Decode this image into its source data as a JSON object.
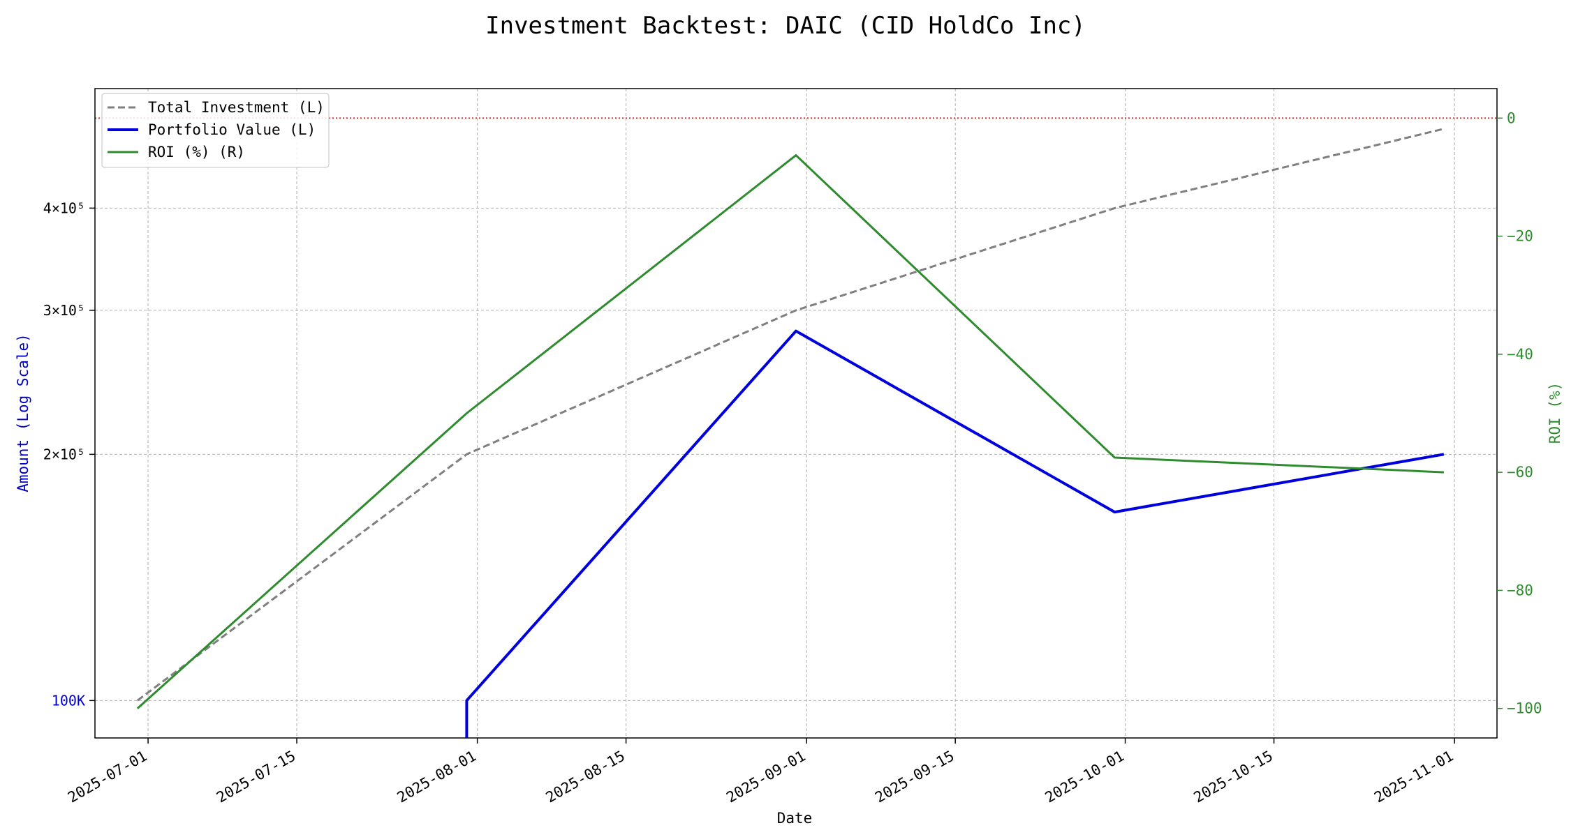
{
  "chart_data": {
    "type": "line",
    "title": "Investment Backtest: DAIC (CID HoldCo Inc)",
    "xlabel": "Date",
    "ylabel_left": "Amount (Log Scale)",
    "ylabel_right": "ROI (%)",
    "x_range": [
      "2025-06-26",
      "2025-11-05"
    ],
    "y_left_scale": "log",
    "y_left_range": [
      90000,
      560000
    ],
    "y_right_range": [
      -105,
      5
    ],
    "x_ticks": [
      "2025-07-01",
      "2025-07-15",
      "2025-08-01",
      "2025-08-15",
      "2025-09-01",
      "2025-09-15",
      "2025-10-01",
      "2025-10-15",
      "2025-11-01"
    ],
    "y_left_ticks": [
      {
        "value": 100000,
        "label": "100K"
      },
      {
        "value": 200000,
        "label": "2×10⁵"
      },
      {
        "value": 300000,
        "label": "3×10⁵"
      },
      {
        "value": 400000,
        "label": "4×10⁵"
      }
    ],
    "y_right_ticks": [
      0,
      -20,
      -40,
      -60,
      -80,
      -100
    ],
    "grid": true,
    "legend_position": "top-left",
    "reference_line": {
      "axis": "right",
      "value": 0,
      "color": "#d62728",
      "style": "dotted"
    },
    "series": [
      {
        "name": "Total Investment (L)",
        "axis": "left",
        "style": "dashed",
        "color": "#7f7f7f",
        "points": [
          {
            "x": "2025-06-30",
            "y": 100000
          },
          {
            "x": "2025-07-31",
            "y": 200000
          },
          {
            "x": "2025-08-31",
            "y": 300000
          },
          {
            "x": "2025-09-30",
            "y": 400000
          },
          {
            "x": "2025-10-31",
            "y": 500000
          }
        ]
      },
      {
        "name": "Portfolio Value (L)",
        "axis": "left",
        "style": "solid-thick",
        "color": "#0000dd",
        "points": [
          {
            "x": "2025-07-31",
            "y": 85000
          },
          {
            "x": "2025-07-31",
            "y": 100000
          },
          {
            "x": "2025-08-31",
            "y": 283000
          },
          {
            "x": "2025-09-30",
            "y": 170000
          },
          {
            "x": "2025-10-31",
            "y": 200000
          }
        ]
      },
      {
        "name": "ROI (%) (R)",
        "axis": "right",
        "style": "solid",
        "color": "#2e8b2e",
        "points": [
          {
            "x": "2025-06-30",
            "y": -100
          },
          {
            "x": "2025-07-31",
            "y": -50
          },
          {
            "x": "2025-08-31",
            "y": -6.3
          },
          {
            "x": "2025-09-30",
            "y": -57.5
          },
          {
            "x": "2025-10-31",
            "y": -60
          }
        ]
      }
    ]
  },
  "colors": {
    "left_axis_label": "#0000cc",
    "right_axis": "#2e8b2e",
    "grid": "#b0b0b0",
    "text": "#000000"
  }
}
